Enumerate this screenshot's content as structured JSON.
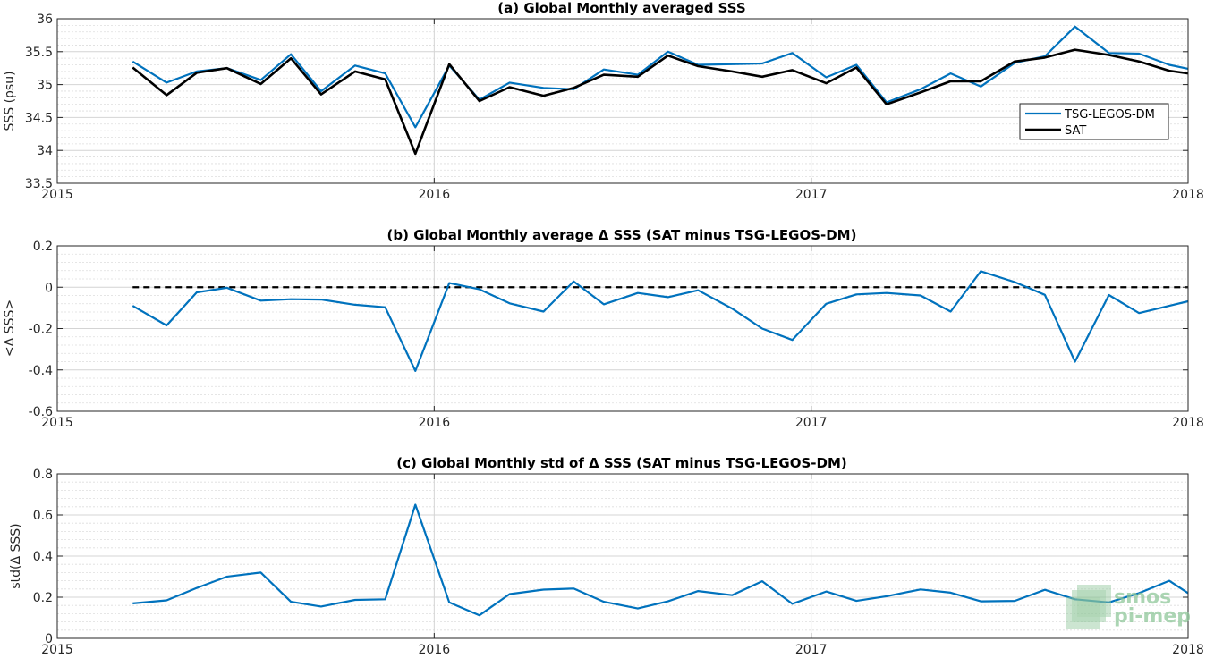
{
  "chart_data": [
    {
      "type": "line",
      "title": "(a) Global Monthly averaged SSS",
      "xlabel": "",
      "ylabel": "SSS (psu)",
      "xlim": [
        2015,
        2018
      ],
      "ylim": [
        33.5,
        36
      ],
      "xticks": [
        2015,
        2016,
        2017,
        2018
      ],
      "xtick_labels": [
        "2015",
        "2016",
        "2017",
        "2018"
      ],
      "yticks": [
        33.5,
        34,
        34.5,
        35,
        35.5,
        36
      ],
      "ytick_labels": [
        "33.5",
        "34",
        "34.5",
        "35",
        "35.5",
        "36"
      ],
      "grid": true,
      "legend": "right",
      "x": [
        2015.2,
        2015.29,
        2015.37,
        2015.45,
        2015.54,
        2015.62,
        2015.7,
        2015.79,
        2015.87,
        2015.95,
        2016.04,
        2016.12,
        2016.2,
        2016.29,
        2016.37,
        2016.45,
        2016.54,
        2016.62,
        2016.7,
        2016.79,
        2016.87,
        2016.95,
        2017.04,
        2017.12,
        2017.2,
        2017.29,
        2017.37,
        2017.45,
        2017.54,
        2017.62,
        2017.7,
        2017.79,
        2017.87,
        2017.95,
        2018.0
      ],
      "series": [
        {
          "name": "TSG-LEGOS-DM",
          "color": "#0072bd",
          "width": 2.2,
          "values": [
            35.35,
            35.03,
            35.2,
            35.25,
            35.07,
            35.46,
            34.9,
            35.29,
            35.17,
            34.35,
            35.29,
            34.77,
            35.03,
            34.95,
            34.93,
            35.23,
            35.15,
            35.5,
            35.3,
            35.31,
            35.32,
            35.48,
            35.11,
            35.3,
            34.73,
            34.93,
            35.17,
            34.97,
            35.33,
            35.43,
            35.88,
            35.48,
            35.47,
            35.3,
            35.24
          ]
        },
        {
          "name": "SAT",
          "color": "#000000",
          "width": 2.6,
          "values": [
            35.26,
            34.84,
            35.18,
            35.25,
            35.01,
            35.4,
            34.85,
            35.2,
            35.08,
            33.95,
            35.31,
            34.75,
            34.96,
            34.83,
            34.95,
            35.15,
            35.12,
            35.44,
            35.28,
            35.2,
            35.12,
            35.22,
            35.02,
            35.26,
            34.7,
            34.88,
            35.05,
            35.05,
            35.35,
            35.41,
            35.53,
            35.45,
            35.35,
            35.21,
            35.17
          ]
        }
      ]
    },
    {
      "type": "line",
      "title": "(b) Global Monthly average Δ SSS (SAT minus TSG-LEGOS-DM)",
      "xlabel": "",
      "ylabel": "<Δ SSS>",
      "xlim": [
        2015,
        2018
      ],
      "ylim": [
        -0.6,
        0.2
      ],
      "xticks": [
        2015,
        2016,
        2017,
        2018
      ],
      "xtick_labels": [
        "2015",
        "2016",
        "2017",
        "2018"
      ],
      "yticks": [
        -0.6,
        -0.4,
        -0.2,
        0,
        0.2
      ],
      "ytick_labels": [
        "-0.6",
        "-0.4",
        "-0.2",
        "0",
        "0.2"
      ],
      "grid": true,
      "reference_line": 0,
      "x": [
        2015.2,
        2015.29,
        2015.37,
        2015.45,
        2015.54,
        2015.62,
        2015.7,
        2015.79,
        2015.87,
        2015.95,
        2016.04,
        2016.12,
        2016.2,
        2016.29,
        2016.37,
        2016.45,
        2016.54,
        2016.62,
        2016.7,
        2016.79,
        2016.87,
        2016.95,
        2017.04,
        2017.12,
        2017.2,
        2017.29,
        2017.37,
        2017.45,
        2017.54,
        2017.62,
        2017.7,
        2017.79,
        2017.87,
        2017.95,
        2018.0
      ],
      "series": [
        {
          "name": "",
          "color": "#0072bd",
          "width": 2.2,
          "values": [
            -0.09,
            -0.185,
            -0.025,
            -0.003,
            -0.065,
            -0.058,
            -0.06,
            -0.085,
            -0.097,
            -0.405,
            0.02,
            -0.01,
            -0.078,
            -0.118,
            0.028,
            -0.083,
            -0.028,
            -0.048,
            -0.015,
            -0.103,
            -0.2,
            -0.255,
            -0.08,
            -0.035,
            -0.028,
            -0.04,
            -0.118,
            0.077,
            0.025,
            -0.037,
            -0.36,
            -0.038,
            -0.125,
            -0.09,
            -0.068
          ]
        }
      ]
    },
    {
      "type": "line",
      "title": "(c) Global Monthly std of Δ SSS (SAT minus TSG-LEGOS-DM)",
      "xlabel": "",
      "ylabel": "std(Δ SSS)",
      "xlim": [
        2015,
        2018
      ],
      "ylim": [
        0,
        0.8
      ],
      "xticks": [
        2015,
        2016,
        2017,
        2018
      ],
      "xtick_labels": [
        "2015",
        "2016",
        "2017",
        "2018"
      ],
      "yticks": [
        0,
        0.2,
        0.4,
        0.6,
        0.8
      ],
      "ytick_labels": [
        "0",
        "0.2",
        "0.4",
        "0.6",
        "0.8"
      ],
      "grid": true,
      "x": [
        2015.2,
        2015.29,
        2015.37,
        2015.45,
        2015.54,
        2015.62,
        2015.7,
        2015.79,
        2015.87,
        2015.95,
        2016.04,
        2016.12,
        2016.2,
        2016.29,
        2016.37,
        2016.45,
        2016.54,
        2016.62,
        2016.7,
        2016.79,
        2016.87,
        2016.95,
        2017.04,
        2017.12,
        2017.2,
        2017.29,
        2017.37,
        2017.45,
        2017.54,
        2017.62,
        2017.7,
        2017.79,
        2017.87,
        2017.95,
        2018.0
      ],
      "series": [
        {
          "name": "",
          "color": "#0072bd",
          "width": 2.2,
          "values": [
            0.17,
            0.185,
            0.245,
            0.3,
            0.32,
            0.178,
            0.155,
            0.187,
            0.19,
            0.65,
            0.175,
            0.112,
            0.215,
            0.237,
            0.242,
            0.178,
            0.145,
            0.18,
            0.23,
            0.21,
            0.278,
            0.168,
            0.228,
            0.182,
            0.205,
            0.238,
            0.222,
            0.18,
            0.182,
            0.236,
            0.19,
            0.175,
            0.22,
            0.28,
            0.22
          ]
        }
      ]
    }
  ],
  "watermark": {
    "line1": "smos",
    "line2": "pi-mep",
    "color": "#8fc79a"
  }
}
